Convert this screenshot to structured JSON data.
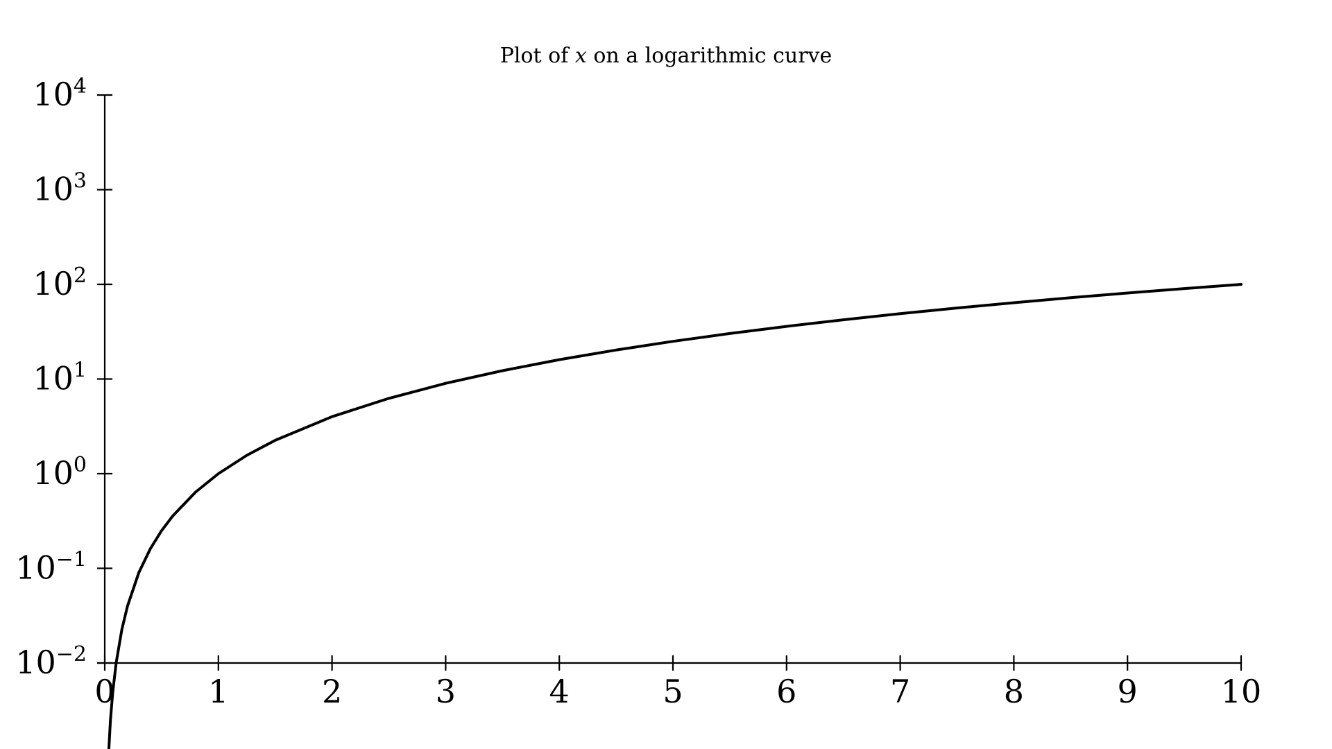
{
  "chart_data": {
    "type": "line",
    "title": {
      "prefix": "Plot of ",
      "variable": "x",
      "suffix": " on a logarithmic curve"
    },
    "xlabel": "",
    "ylabel": "",
    "xlim": [
      0,
      10
    ],
    "ylim_exponents": [
      -2,
      4
    ],
    "y_scale": "log",
    "grid": false,
    "x_ticks": [
      0,
      1,
      2,
      3,
      4,
      5,
      6,
      7,
      8,
      9,
      10
    ],
    "y_ticks": [
      {
        "base": "10",
        "exp": "4"
      },
      {
        "base": "10",
        "exp": "3"
      },
      {
        "base": "10",
        "exp": "2"
      },
      {
        "base": "10",
        "exp": "1"
      },
      {
        "base": "10",
        "exp": "0"
      },
      {
        "base": "10",
        "exp": "−1"
      },
      {
        "base": "10",
        "exp": "−2"
      }
    ],
    "series": [
      {
        "color": "#000000",
        "x": [
          0.03,
          0.05,
          0.07,
          0.1,
          0.15,
          0.2,
          0.3,
          0.4,
          0.5,
          0.6,
          0.8,
          1,
          1.25,
          1.5,
          2,
          2.5,
          3,
          3.5,
          4,
          4.5,
          5,
          5.5,
          6,
          6.5,
          7,
          7.5,
          8,
          8.5,
          9,
          9.5,
          10
        ],
        "y": [
          0.0009,
          0.0025,
          0.0049,
          0.01,
          0.0225,
          0.04,
          0.09,
          0.16,
          0.25,
          0.36,
          0.64,
          1,
          1.5625,
          2.25,
          4,
          6.25,
          9,
          12.25,
          16,
          20.25,
          25,
          30.25,
          36,
          42.25,
          49,
          56.25,
          64,
          72.25,
          81,
          90.25,
          100
        ]
      }
    ]
  }
}
